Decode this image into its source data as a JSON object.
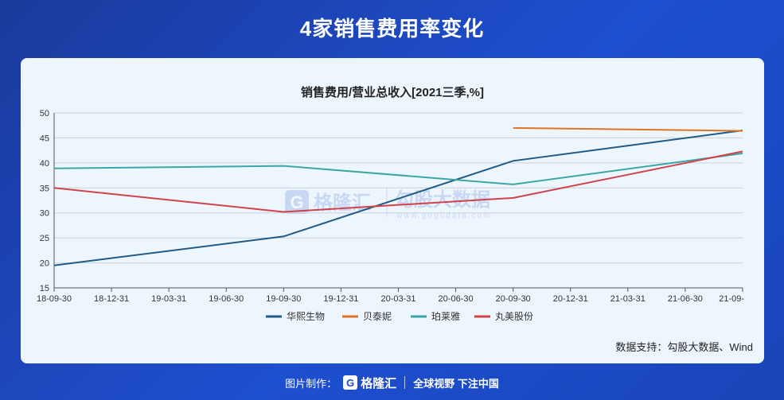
{
  "header": {
    "title": "4家销售费用率变化"
  },
  "chart_data": {
    "type": "line",
    "title": "销售费用/营业总收入[2021三季,%]",
    "xlabel": "",
    "ylabel": "",
    "ylim": [
      15,
      50
    ],
    "yticks": [
      15,
      20,
      25,
      30,
      35,
      40,
      45,
      50
    ],
    "categories": [
      "18-09-30",
      "18-12-31",
      "19-03-31",
      "19-06-30",
      "19-09-30",
      "19-12-31",
      "20-03-31",
      "20-06-30",
      "20-09-30",
      "20-12-31",
      "21-03-31",
      "21-06-30",
      "21-09-"
    ],
    "grid": true,
    "legend_position": "bottom",
    "series": [
      {
        "name": "华熙生物",
        "color": "#1f5b88",
        "values": [
          19.5,
          null,
          null,
          null,
          25.3,
          null,
          null,
          null,
          40.4,
          null,
          null,
          null,
          46.5
        ]
      },
      {
        "name": "贝泰妮",
        "color": "#e07426",
        "values": [
          null,
          null,
          null,
          null,
          null,
          null,
          null,
          null,
          47.0,
          null,
          null,
          null,
          46.4
        ]
      },
      {
        "name": "珀莱雅",
        "color": "#3aa6a6",
        "values": [
          38.9,
          null,
          null,
          null,
          39.4,
          null,
          null,
          null,
          35.7,
          null,
          null,
          null,
          41.9
        ]
      },
      {
        "name": "丸美股份",
        "color": "#d0434a",
        "values": [
          35.0,
          null,
          null,
          null,
          30.2,
          null,
          null,
          null,
          33.0,
          null,
          null,
          null,
          42.3
        ]
      }
    ]
  },
  "watermark": {
    "brand": "格隆汇",
    "brand2": "勾股大数据",
    "url": "www.gogudata.com",
    "logo_letter": "G"
  },
  "source": {
    "text": "数据支持：勾股大数据、Wind"
  },
  "footer": {
    "made_by": "图片制作：",
    "logo_letter": "G",
    "brand": "格隆汇",
    "slogan": "全球视野 下注中国"
  }
}
